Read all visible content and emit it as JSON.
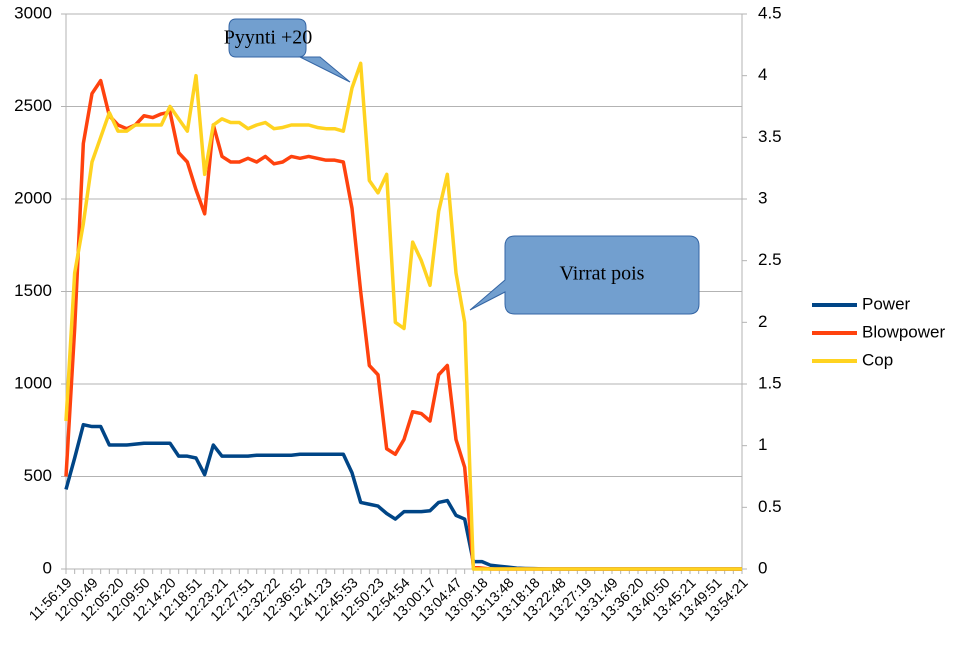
{
  "chart_data": {
    "type": "line",
    "categories": [
      "11:56:19",
      null,
      null,
      "12:00:49",
      null,
      null,
      "12:05:20",
      null,
      null,
      "12:09:50",
      null,
      null,
      "12:14:20",
      null,
      null,
      "12:18:51",
      null,
      null,
      "12:23:21",
      null,
      null,
      "12:27:51",
      null,
      null,
      "12:32:22",
      null,
      null,
      "12:36:52",
      null,
      null,
      "12:41:23",
      null,
      null,
      "12:45:53",
      null,
      null,
      "12:50:23",
      null,
      null,
      "12:54:54",
      null,
      null,
      "13:00:17",
      null,
      null,
      "13:04:47",
      null,
      null,
      "13:09:18",
      null,
      null,
      "13:13:48",
      null,
      null,
      "13:18:18",
      null,
      null,
      "13:22:48",
      null,
      null,
      "13:27:19",
      null,
      null,
      "13:31:49",
      null,
      null,
      "13:36:20",
      null,
      null,
      "13:40:50",
      null,
      null,
      "13:45:21",
      null,
      null,
      "13:49:51",
      null,
      null,
      "13:54:21"
    ],
    "series": [
      {
        "name": "Power",
        "color": "#004586",
        "values": [
          430,
          600,
          780,
          770,
          770,
          670,
          670,
          670,
          675,
          680,
          680,
          680,
          680,
          610,
          610,
          600,
          510,
          670,
          610,
          610,
          610,
          610,
          615,
          615,
          615,
          615,
          615,
          620,
          620,
          620,
          620,
          620,
          620,
          520,
          360,
          350,
          340,
          300,
          270,
          310,
          310,
          310,
          315,
          360,
          370,
          290,
          270,
          40,
          40,
          20,
          15,
          10,
          5,
          3,
          2,
          1,
          0,
          0,
          0,
          0,
          0,
          0,
          0,
          0,
          0,
          0,
          0,
          0,
          0,
          0,
          0,
          0,
          0,
          0,
          0,
          0,
          0,
          0,
          0
        ]
      },
      {
        "name": "Blowpower",
        "color": "#ff420e",
        "values": [
          500,
          1300,
          2300,
          2570,
          2640,
          2450,
          2400,
          2380,
          2400,
          2450,
          2440,
          2460,
          2470,
          2250,
          2200,
          2050,
          1920,
          2400,
          2230,
          2200,
          2200,
          2220,
          2200,
          2230,
          2190,
          2200,
          2230,
          2220,
          2230,
          2220,
          2210,
          2210,
          2200,
          1950,
          1500,
          1100,
          1050,
          650,
          620,
          700,
          850,
          840,
          800,
          1050,
          1100,
          700,
          550,
          10,
          5,
          0,
          0,
          0,
          0,
          0,
          0,
          0,
          0,
          0,
          0,
          0,
          0,
          0,
          0,
          0,
          0,
          0,
          0,
          0,
          0,
          0,
          0,
          0,
          0,
          0,
          0,
          0,
          0,
          0,
          0
        ]
      },
      {
        "name": "Cop",
        "color": "#ffd320",
        "axis": "y2",
        "values": [
          1.2,
          2.4,
          2.8,
          3.3,
          3.5,
          3.7,
          3.55,
          3.55,
          3.6,
          3.6,
          3.6,
          3.6,
          3.75,
          3.65,
          3.55,
          4.0,
          3.2,
          3.6,
          3.65,
          3.62,
          3.62,
          3.57,
          3.6,
          3.62,
          3.57,
          3.58,
          3.6,
          3.6,
          3.6,
          3.58,
          3.57,
          3.57,
          3.55,
          3.9,
          4.1,
          3.15,
          3.05,
          3.2,
          2.0,
          1.95,
          2.65,
          2.5,
          2.3,
          2.9,
          3.2,
          2.4,
          2.0,
          0,
          0,
          0,
          0,
          0,
          0,
          0,
          0,
          0,
          0,
          0,
          0,
          0,
          0,
          0,
          0,
          0,
          0,
          0,
          0,
          0,
          0,
          0,
          0,
          0,
          0,
          0,
          0,
          0,
          0,
          0,
          0
        ]
      }
    ],
    "ylim": [
      0,
      3000
    ],
    "yticks": [
      0,
      500,
      1000,
      1500,
      2000,
      2500,
      3000
    ],
    "y2lim": [
      0,
      4.5
    ],
    "y2ticks": [
      0,
      0.5,
      1,
      1.5,
      2,
      2.5,
      3,
      3.5,
      4,
      4.5
    ],
    "grid": true,
    "legend": "right",
    "annotations": [
      {
        "text": "Pyynti +20"
      },
      {
        "text": "Virrat pois"
      }
    ]
  }
}
